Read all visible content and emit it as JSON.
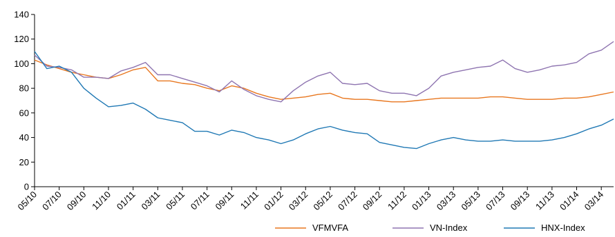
{
  "chart_data": {
    "type": "line",
    "title": "",
    "xlabel": "",
    "ylabel": "",
    "ylim": [
      0,
      140
    ],
    "yticks": [
      0,
      20,
      40,
      60,
      80,
      100,
      120,
      140
    ],
    "x_tick_labels": [
      "05/10",
      "07/10",
      "09/10",
      "11/10",
      "01/11",
      "03/11",
      "05/11",
      "07/11",
      "09/11",
      "11/11",
      "01/12",
      "03/12",
      "05/12",
      "07/12",
      "09/12",
      "11/12",
      "01/13",
      "03/13",
      "05/13",
      "07/13",
      "09/13",
      "11/13",
      "01/14",
      "03/14"
    ],
    "grid": false,
    "legend_position": "bottom-right",
    "series": [
      {
        "name": "VFMVFA",
        "color": "#E8761E",
        "points": [
          [
            "05/10",
            103
          ],
          [
            "06/10",
            99
          ],
          [
            "07/10",
            96
          ],
          [
            "08/10",
            93
          ],
          [
            "09/10",
            91
          ],
          [
            "10/10",
            89
          ],
          [
            "11/10",
            88
          ],
          [
            "12/10",
            91
          ],
          [
            "01/11",
            95
          ],
          [
            "02/11",
            97
          ],
          [
            "03/11",
            86
          ],
          [
            "04/11",
            86
          ],
          [
            "05/11",
            84
          ],
          [
            "06/11",
            83
          ],
          [
            "07/11",
            80
          ],
          [
            "08/11",
            78
          ],
          [
            "09/11",
            82
          ],
          [
            "10/11",
            80
          ],
          [
            "11/11",
            76
          ],
          [
            "12/11",
            73
          ],
          [
            "01/12",
            71
          ],
          [
            "02/12",
            72
          ],
          [
            "03/12",
            73
          ],
          [
            "04/12",
            75
          ],
          [
            "05/12",
            76
          ],
          [
            "06/12",
            72
          ],
          [
            "07/12",
            71
          ],
          [
            "08/12",
            71
          ],
          [
            "09/12",
            70
          ],
          [
            "10/12",
            69
          ],
          [
            "11/12",
            69
          ],
          [
            "12/12",
            70
          ],
          [
            "01/13",
            71
          ],
          [
            "02/13",
            72
          ],
          [
            "03/13",
            72
          ],
          [
            "04/13",
            72
          ],
          [
            "05/13",
            72
          ],
          [
            "06/13",
            73
          ],
          [
            "07/13",
            73
          ],
          [
            "08/13",
            72
          ],
          [
            "09/13",
            71
          ],
          [
            "10/13",
            71
          ],
          [
            "11/13",
            71
          ],
          [
            "12/13",
            72
          ],
          [
            "01/14",
            72
          ],
          [
            "02/14",
            73
          ],
          [
            "03/14",
            75
          ],
          [
            "04/14",
            77
          ]
        ]
      },
      {
        "name": "VN-Index",
        "color": "#8E74B0",
        "points": [
          [
            "05/10",
            107
          ],
          [
            "06/10",
            98
          ],
          [
            "07/10",
            97
          ],
          [
            "08/10",
            95
          ],
          [
            "09/10",
            89
          ],
          [
            "10/10",
            89
          ],
          [
            "11/10",
            88
          ],
          [
            "12/10",
            94
          ],
          [
            "01/11",
            97
          ],
          [
            "02/11",
            101
          ],
          [
            "03/11",
            91
          ],
          [
            "04/11",
            91
          ],
          [
            "05/11",
            88
          ],
          [
            "06/11",
            85
          ],
          [
            "07/11",
            82
          ],
          [
            "08/11",
            77
          ],
          [
            "09/11",
            86
          ],
          [
            "10/11",
            79
          ],
          [
            "11/11",
            74
          ],
          [
            "12/11",
            71
          ],
          [
            "01/12",
            69
          ],
          [
            "02/12",
            78
          ],
          [
            "03/12",
            85
          ],
          [
            "04/12",
            90
          ],
          [
            "05/12",
            93
          ],
          [
            "06/12",
            84
          ],
          [
            "07/12",
            83
          ],
          [
            "08/12",
            84
          ],
          [
            "09/12",
            78
          ],
          [
            "10/12",
            76
          ],
          [
            "11/12",
            76
          ],
          [
            "12/12",
            74
          ],
          [
            "01/13",
            80
          ],
          [
            "02/13",
            90
          ],
          [
            "03/13",
            93
          ],
          [
            "04/13",
            95
          ],
          [
            "05/13",
            97
          ],
          [
            "06/13",
            98
          ],
          [
            "07/13",
            103
          ],
          [
            "08/13",
            96
          ],
          [
            "09/13",
            93
          ],
          [
            "10/13",
            95
          ],
          [
            "11/13",
            98
          ],
          [
            "12/13",
            99
          ],
          [
            "01/14",
            101
          ],
          [
            "02/14",
            108
          ],
          [
            "03/14",
            111
          ],
          [
            "04/14",
            118
          ]
        ]
      },
      {
        "name": "HNX-Index",
        "color": "#1F78B4",
        "points": [
          [
            "05/10",
            110
          ],
          [
            "06/10",
            96
          ],
          [
            "07/10",
            98
          ],
          [
            "08/10",
            93
          ],
          [
            "09/10",
            80
          ],
          [
            "10/10",
            72
          ],
          [
            "11/10",
            65
          ],
          [
            "12/10",
            66
          ],
          [
            "01/11",
            68
          ],
          [
            "02/11",
            63
          ],
          [
            "03/11",
            56
          ],
          [
            "04/11",
            54
          ],
          [
            "05/11",
            52
          ],
          [
            "06/11",
            45
          ],
          [
            "07/11",
            45
          ],
          [
            "08/11",
            42
          ],
          [
            "09/11",
            46
          ],
          [
            "10/11",
            44
          ],
          [
            "11/11",
            40
          ],
          [
            "12/11",
            38
          ],
          [
            "01/12",
            35
          ],
          [
            "02/12",
            38
          ],
          [
            "03/12",
            43
          ],
          [
            "04/12",
            47
          ],
          [
            "05/12",
            49
          ],
          [
            "06/12",
            46
          ],
          [
            "07/12",
            44
          ],
          [
            "08/12",
            43
          ],
          [
            "09/12",
            36
          ],
          [
            "10/12",
            34
          ],
          [
            "11/12",
            32
          ],
          [
            "12/12",
            31
          ],
          [
            "01/13",
            35
          ],
          [
            "02/13",
            38
          ],
          [
            "03/13",
            40
          ],
          [
            "04/13",
            38
          ],
          [
            "05/13",
            37
          ],
          [
            "06/13",
            37
          ],
          [
            "07/13",
            38
          ],
          [
            "08/13",
            37
          ],
          [
            "09/13",
            37
          ],
          [
            "10/13",
            37
          ],
          [
            "11/13",
            38
          ],
          [
            "12/13",
            40
          ],
          [
            "01/14",
            43
          ],
          [
            "02/14",
            47
          ],
          [
            "03/14",
            50
          ],
          [
            "04/14",
            55
          ]
        ]
      }
    ]
  }
}
